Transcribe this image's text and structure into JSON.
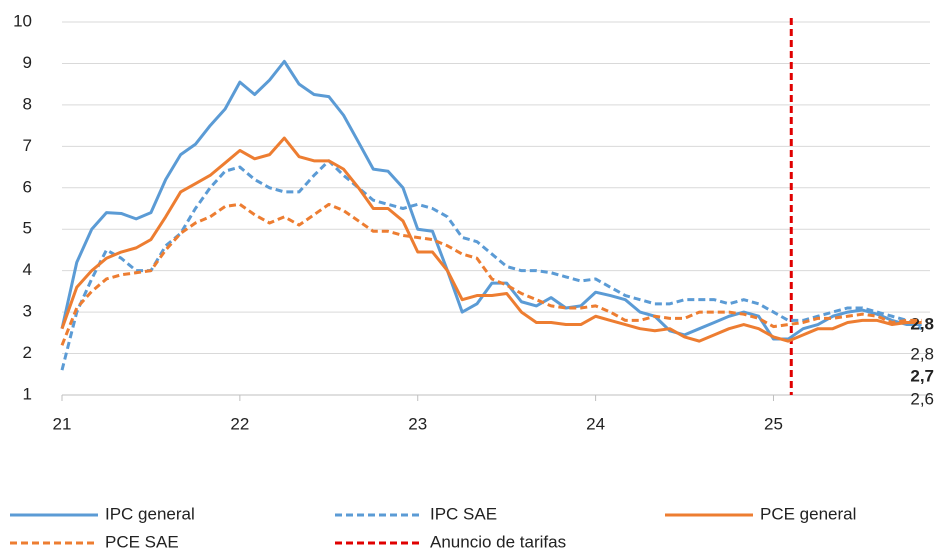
{
  "chart_data": {
    "type": "line",
    "x": [
      21,
      21.083,
      21.167,
      21.25,
      21.333,
      21.417,
      21.5,
      21.583,
      21.667,
      21.75,
      21.833,
      21.917,
      22,
      22.083,
      22.167,
      22.25,
      22.333,
      22.417,
      22.5,
      22.583,
      22.667,
      22.75,
      22.833,
      22.917,
      23,
      23.083,
      23.167,
      23.25,
      23.333,
      23.417,
      23.5,
      23.583,
      23.667,
      23.75,
      23.833,
      23.917,
      24,
      24.083,
      24.167,
      24.25,
      24.333,
      24.417,
      24.5,
      24.583,
      24.667,
      24.75,
      24.833,
      24.917,
      25,
      25.083,
      25.167,
      25.25,
      25.333,
      25.417,
      25.5,
      25.583,
      25.667,
      25.75,
      25.833
    ],
    "series": [
      {
        "name": "IPC general",
        "color": "#5b9bd5",
        "dashed": false,
        "end_label": "2,7",
        "end_label_bold": true,
        "values": [
          2.6,
          4.2,
          5.0,
          5.4,
          5.38,
          5.25,
          5.4,
          6.2,
          6.8,
          7.05,
          7.5,
          7.9,
          8.55,
          8.25,
          8.6,
          9.05,
          8.5,
          8.25,
          8.2,
          7.75,
          7.1,
          6.45,
          6.4,
          6.0,
          5.0,
          4.95,
          4.0,
          3.0,
          3.2,
          3.7,
          3.7,
          3.25,
          3.15,
          3.35,
          3.1,
          3.15,
          3.48,
          3.4,
          3.3,
          3.0,
          2.9,
          2.55,
          2.45,
          2.6,
          2.75,
          2.9,
          3.0,
          2.9,
          2.35,
          2.35,
          2.6,
          2.7,
          2.9,
          3.0,
          3.05,
          2.95,
          2.8,
          2.7,
          2.7
        ]
      },
      {
        "name": "IPC SAE",
        "color": "#5b9bd5",
        "dashed": true,
        "end_label": "2,6",
        "end_label_bold": false,
        "values": [
          1.6,
          3.0,
          3.8,
          4.5,
          4.3,
          4.0,
          4.0,
          4.6,
          4.9,
          5.5,
          6.0,
          6.4,
          6.5,
          6.2,
          6.0,
          5.9,
          5.9,
          6.3,
          6.65,
          6.3,
          6.0,
          5.7,
          5.6,
          5.5,
          5.6,
          5.5,
          5.3,
          4.8,
          4.7,
          4.4,
          4.1,
          4.0,
          4.0,
          3.95,
          3.85,
          3.75,
          3.8,
          3.6,
          3.4,
          3.3,
          3.2,
          3.2,
          3.3,
          3.3,
          3.3,
          3.2,
          3.3,
          3.2,
          3.0,
          2.8,
          2.8,
          2.9,
          3.0,
          3.1,
          3.1,
          3.0,
          2.9,
          2.8,
          2.6
        ]
      },
      {
        "name": "PCE general",
        "color": "#ed7d31",
        "dashed": false,
        "end_label": "2,8",
        "end_label_bold": true,
        "values": [
          2.6,
          3.6,
          4.0,
          4.3,
          4.45,
          4.55,
          4.75,
          5.3,
          5.9,
          6.1,
          6.3,
          6.6,
          6.9,
          6.7,
          6.8,
          7.2,
          6.75,
          6.65,
          6.65,
          6.45,
          6.0,
          5.5,
          5.5,
          5.2,
          4.45,
          4.45,
          4.0,
          3.3,
          3.4,
          3.4,
          3.45,
          3.0,
          2.75,
          2.75,
          2.7,
          2.7,
          2.9,
          2.8,
          2.7,
          2.6,
          2.55,
          2.6,
          2.4,
          2.3,
          2.45,
          2.6,
          2.7,
          2.6,
          2.4,
          2.3,
          2.45,
          2.6,
          2.6,
          2.75,
          2.8,
          2.8,
          2.7,
          2.75,
          2.75
        ]
      },
      {
        "name": "PCE SAE",
        "color": "#ed7d31",
        "dashed": true,
        "end_label": "2,8",
        "end_label_bold": false,
        "values": [
          2.2,
          3.1,
          3.5,
          3.8,
          3.9,
          3.95,
          4.0,
          4.5,
          4.9,
          5.15,
          5.3,
          5.55,
          5.6,
          5.35,
          5.15,
          5.3,
          5.1,
          5.35,
          5.6,
          5.45,
          5.2,
          4.95,
          4.95,
          4.85,
          4.8,
          4.75,
          4.6,
          4.4,
          4.3,
          3.8,
          3.65,
          3.45,
          3.3,
          3.15,
          3.1,
          3.1,
          3.15,
          3.0,
          2.8,
          2.8,
          2.9,
          2.85,
          2.85,
          3.0,
          3.0,
          3.0,
          2.95,
          2.85,
          2.65,
          2.7,
          2.75,
          2.85,
          2.85,
          2.9,
          2.95,
          2.9,
          2.75,
          2.8,
          2.8
        ]
      }
    ],
    "marker_line": {
      "name": "Anuncio de tarifas",
      "x": 25.1,
      "color": "#e00000"
    },
    "xlim": [
      21,
      25.88
    ],
    "xticks": [
      21,
      22,
      23,
      24,
      25
    ],
    "ylim": [
      1,
      10
    ],
    "yticks": [
      1,
      2,
      3,
      4,
      5,
      6,
      7,
      8,
      9,
      10
    ],
    "grid": true
  }
}
